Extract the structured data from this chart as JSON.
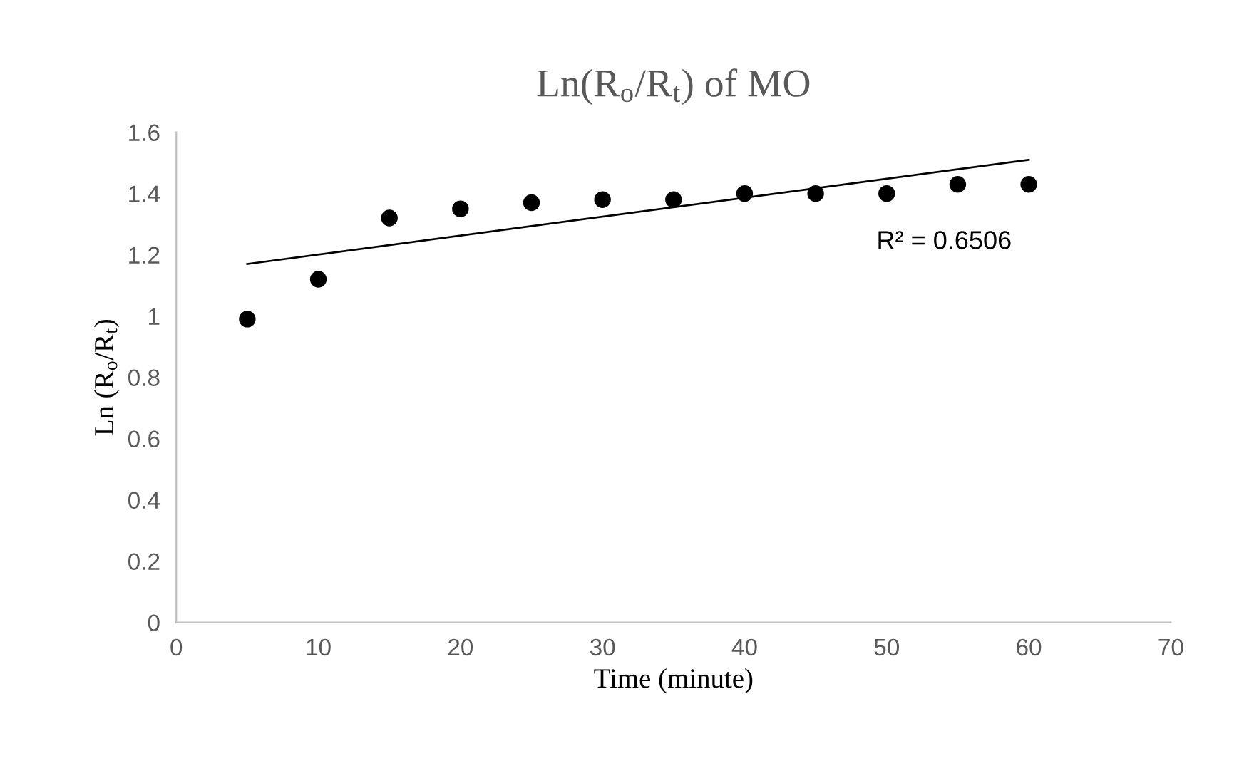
{
  "chart_data": {
    "type": "scatter",
    "title": "Ln(R$_{o}$/R$_{t}$) of MO",
    "xlabel": "Time (minute)",
    "ylabel": "Ln (R$_{o}$/R$_{t}$)",
    "x": [
      5,
      10,
      15,
      20,
      25,
      30,
      35,
      40,
      45,
      50,
      55,
      60
    ],
    "series": [
      {
        "color": "#000000",
        "values": [
          0.99,
          1.12,
          1.32,
          1.35,
          1.37,
          1.38,
          1.38,
          1.4,
          1.4,
          1.4,
          1.43,
          1.43
        ]
      },
      {
        "type": "line",
        "color": "#000000",
        "line_style": "solid",
        "marker": "none",
        "x": [
          5,
          60
        ],
        "values": [
          1.17,
          1.51
        ]
      }
    ],
    "annotations": [
      "R² = 0.6506"
    ],
    "marker": "circle",
    "xlim": [
      0,
      70
    ],
    "xticks": [
      0,
      10,
      20,
      30,
      40,
      50,
      60,
      70
    ],
    "ylim": [
      0,
      1.6
    ],
    "yticks": [
      0,
      0.2,
      0.4,
      0.6,
      0.8,
      1,
      1.2,
      1.4,
      1.6
    ],
    "grid": false,
    "legend": false
  }
}
